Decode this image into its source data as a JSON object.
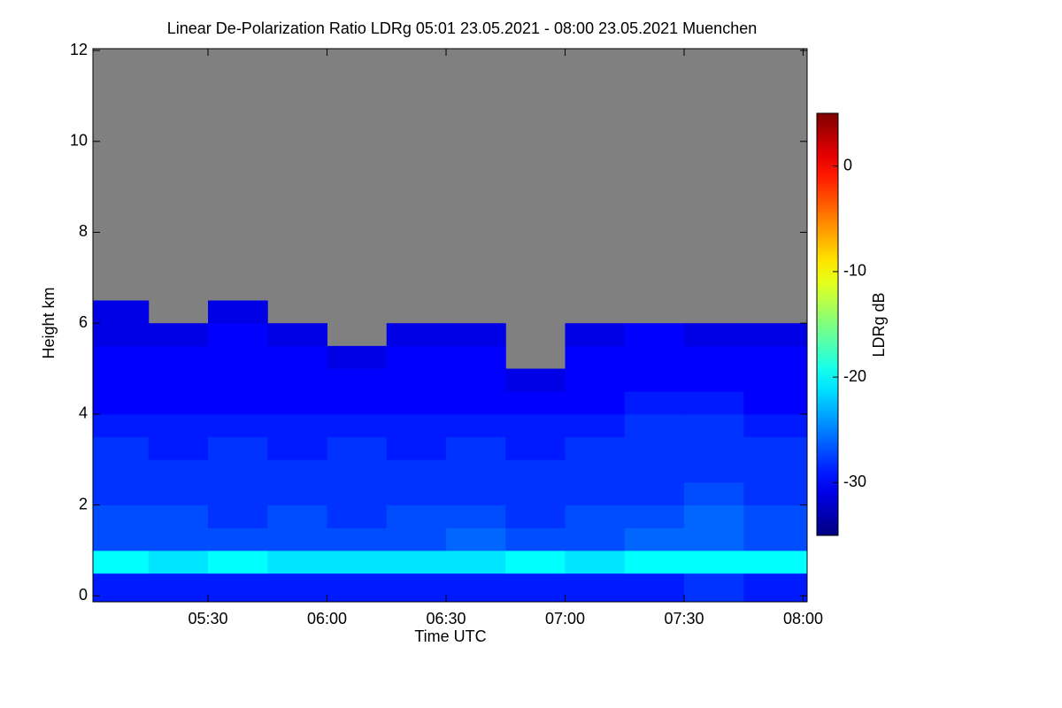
{
  "chart_data": {
    "type": "heatmap",
    "title": "Linear De-Polarization Ratio LDRg   05:01 23.05.2021 - 08:00 23.05.2021 Muenchen",
    "x_label": "Time UTC",
    "y_label": "Height km",
    "colorbar_label": "LDRg dB",
    "colormap": "jet",
    "missing_color": "#808080",
    "xlim": [
      301,
      481
    ],
    "xticks": [
      {
        "value": 330,
        "label": "05:30"
      },
      {
        "value": 360,
        "label": "06:00"
      },
      {
        "value": 390,
        "label": "06:30"
      },
      {
        "value": 420,
        "label": "07:00"
      },
      {
        "value": 450,
        "label": "07:30"
      },
      {
        "value": 480,
        "label": "08:00"
      }
    ],
    "ylim": [
      -0.13,
      12.04
    ],
    "yticks": [
      0,
      2,
      4,
      6,
      8,
      10,
      12
    ],
    "clim": [
      -35,
      5
    ],
    "cticks": [
      -30,
      -20,
      -10,
      0
    ],
    "x_edges": [
      301,
      315,
      330,
      345,
      360,
      375,
      390,
      405,
      420,
      435,
      450,
      465,
      480
    ],
    "y_edges": [
      0,
      0.5,
      1,
      1.5,
      2,
      2.5,
      3,
      3.5,
      4,
      4.5,
      5,
      5.5,
      6,
      6.5,
      7,
      7.5,
      8,
      8.5,
      9,
      9.5,
      10,
      10.5,
      11,
      11.5,
      12
    ],
    "values": [
      [
        -29,
        -29,
        -29,
        -29,
        -29,
        -29,
        -29,
        -29,
        -29,
        -29,
        -28,
        -29
      ],
      [
        -20,
        -21,
        -20,
        -21,
        -21,
        -21,
        -21,
        -20,
        -21,
        -20,
        -20,
        -20
      ],
      [
        -27,
        -27,
        -27,
        -27,
        -27,
        -27,
        -26,
        -27,
        -27,
        -26,
        -26,
        -27
      ],
      [
        -27,
        -27,
        -28,
        -27,
        -28,
        -27,
        -27,
        -28,
        -27,
        -27,
        -26,
        -27
      ],
      [
        -28,
        -28,
        -28,
        -28,
        -28,
        -28,
        -28,
        -28,
        -28,
        -28,
        -27,
        -28
      ],
      [
        -28,
        -28,
        -28,
        -28,
        -28,
        -28,
        -28,
        -28,
        -28,
        -28,
        -28,
        -28
      ],
      [
        -28,
        -29,
        -28,
        -29,
        -28,
        -29,
        -28,
        -29,
        -28,
        -28,
        -28,
        -28
      ],
      [
        -29,
        -29,
        -29,
        -29,
        -29,
        -29,
        -29,
        -29,
        -29,
        -28,
        -28,
        -29
      ],
      [
        -30,
        -30,
        -30,
        -30,
        -30,
        -30,
        -30,
        -30,
        -30,
        -29,
        -29,
        -30
      ],
      [
        -30,
        -30,
        -30,
        -30,
        -30,
        -30,
        -30,
        -31,
        -30,
        -30,
        -30,
        -30
      ],
      [
        -30,
        -30,
        -30,
        -30,
        -31,
        -30,
        -30,
        null,
        -30,
        -30,
        -30,
        -30
      ],
      [
        -31,
        -31,
        -30,
        -31,
        null,
        -31,
        -31,
        null,
        -31,
        -30,
        -31,
        -31
      ],
      [
        -31,
        null,
        -31,
        null,
        null,
        null,
        null,
        null,
        null,
        null,
        null,
        null
      ],
      [
        null,
        null,
        null,
        null,
        null,
        null,
        null,
        null,
        null,
        null,
        null,
        null
      ],
      [
        null,
        null,
        null,
        null,
        null,
        null,
        null,
        null,
        null,
        null,
        null,
        null
      ],
      [
        null,
        null,
        null,
        null,
        null,
        null,
        null,
        null,
        null,
        null,
        null,
        null
      ],
      [
        null,
        null,
        null,
        null,
        null,
        null,
        null,
        null,
        null,
        null,
        null,
        null
      ],
      [
        null,
        null,
        null,
        null,
        null,
        null,
        null,
        null,
        null,
        null,
        null,
        null
      ],
      [
        null,
        null,
        null,
        null,
        null,
        null,
        null,
        null,
        null,
        null,
        null,
        null
      ],
      [
        null,
        null,
        null,
        null,
        null,
        null,
        null,
        null,
        null,
        null,
        null,
        null
      ],
      [
        null,
        null,
        null,
        null,
        null,
        null,
        null,
        null,
        null,
        null,
        null,
        null
      ],
      [
        null,
        null,
        null,
        null,
        null,
        null,
        null,
        null,
        null,
        null,
        null,
        null
      ],
      [
        null,
        null,
        null,
        null,
        null,
        null,
        null,
        null,
        null,
        null,
        null,
        null
      ],
      [
        null,
        null,
        null,
        null,
        null,
        null,
        null,
        null,
        null,
        null,
        null,
        null
      ]
    ]
  }
}
